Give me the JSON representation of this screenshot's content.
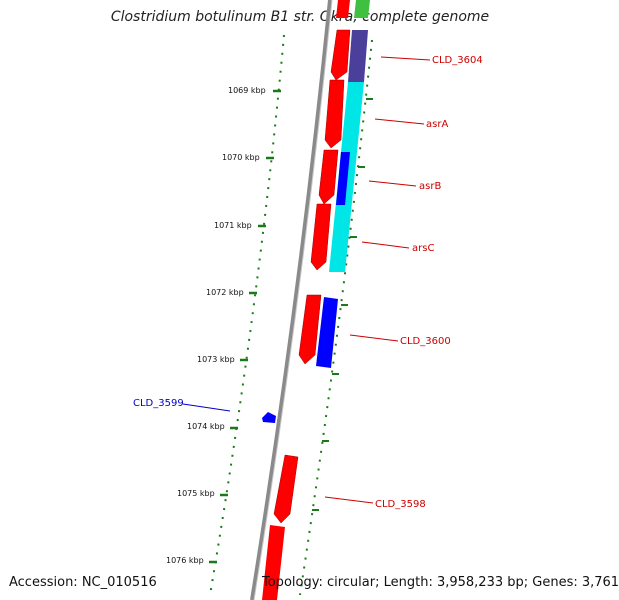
{
  "title": "Clostridium botulinum B1 str. Okra, complete genome",
  "footer": {
    "accession": "Accession: NC_010516",
    "summary": "Topology: circular; Length: 3,958,233 bp; Genes: 3,761"
  },
  "ticks": [
    "1069 kbp",
    "1070 kbp",
    "1071 kbp",
    "1072 kbp",
    "1073 kbp",
    "1074 kbp",
    "1075 kbp",
    "1076 kbp"
  ],
  "gene_labels": [
    {
      "text": "CLD_3604",
      "color": "#cc0000"
    },
    {
      "text": "asrA",
      "color": "#cc0000"
    },
    {
      "text": "asrB",
      "color": "#cc0000"
    },
    {
      "text": "arsC",
      "color": "#cc0000"
    },
    {
      "text": "CLD_3600",
      "color": "#cc0000"
    },
    {
      "text": "CLD_3599",
      "color": "#0000cc"
    },
    {
      "text": "CLD_3598",
      "color": "#cc0000"
    }
  ],
  "colors": {
    "backbone": "#808080",
    "tick": "#1a7a1a",
    "forward_gene": "#ff0000",
    "reverse_gene": "#0000ff",
    "cyan_feature": "#00e5e5",
    "purple_feature": "#4a3f9a",
    "green_feature": "#40c040"
  }
}
